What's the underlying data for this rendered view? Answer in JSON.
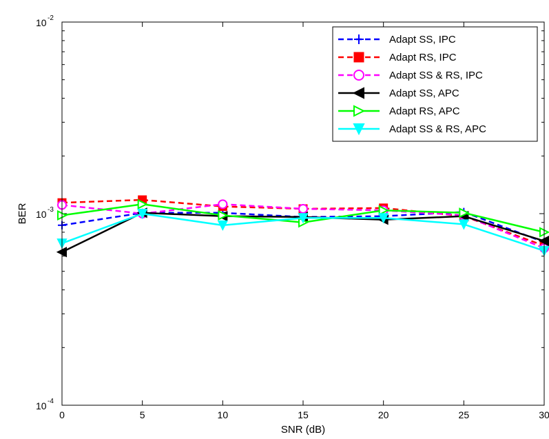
{
  "chart_data": {
    "type": "line",
    "title": "",
    "xlabel": "SNR (dB)",
    "ylabel": "BER",
    "yscale": "log",
    "xlim": [
      0,
      30
    ],
    "ylim": [
      0.0001,
      0.01
    ],
    "x": [
      0,
      5,
      10,
      15,
      20,
      25,
      30
    ],
    "x_ticks": [
      "0",
      "5",
      "10",
      "15",
      "20",
      "25",
      "30"
    ],
    "y_ticks": [
      {
        "value": 0.01,
        "base": "10",
        "exp": "-2"
      },
      {
        "value": 0.001,
        "base": "10",
        "exp": "-3"
      },
      {
        "value": 0.0001,
        "base": "10",
        "exp": "-4"
      }
    ],
    "grid": false,
    "legend_position": "top-right",
    "series": [
      {
        "name": "Adapt SS, IPC",
        "color": "#0000ff",
        "line": "dashed",
        "marker": "plus",
        "values": [
          0.00087,
          0.00101,
          0.00101,
          0.00096,
          0.00097,
          0.00102,
          0.00071
        ]
      },
      {
        "name": "Adapt RS, IPC",
        "color": "#ff0000",
        "line": "dashed",
        "marker": "square",
        "values": [
          0.00114,
          0.00118,
          0.00109,
          0.00106,
          0.00107,
          0.00097,
          0.00068
        ]
      },
      {
        "name": "Adapt SS & RS, IPC",
        "color": "#ff00ff",
        "line": "dashed",
        "marker": "circle",
        "values": [
          0.00111,
          0.001,
          0.00112,
          0.00106,
          0.00104,
          0.00098,
          0.00066
        ]
      },
      {
        "name": "Adapt SS, APC",
        "color": "#000000",
        "line": "solid",
        "marker": "triangle-left",
        "values": [
          0.00063,
          0.00101,
          0.00097,
          0.00096,
          0.00093,
          0.00097,
          0.00072
        ]
      },
      {
        "name": "Adapt RS, APC",
        "color": "#00ff00",
        "line": "solid",
        "marker": "triangle-right",
        "values": [
          0.00098,
          0.00112,
          0.00098,
          0.0009,
          0.00104,
          0.00101,
          0.0008
        ]
      },
      {
        "name": "Adapt SS & RS, APC",
        "color": "#00ffff",
        "line": "solid",
        "marker": "triangle-down",
        "values": [
          0.0007,
          0.001,
          0.00087,
          0.00095,
          0.00095,
          0.00088,
          0.00064
        ]
      }
    ]
  }
}
